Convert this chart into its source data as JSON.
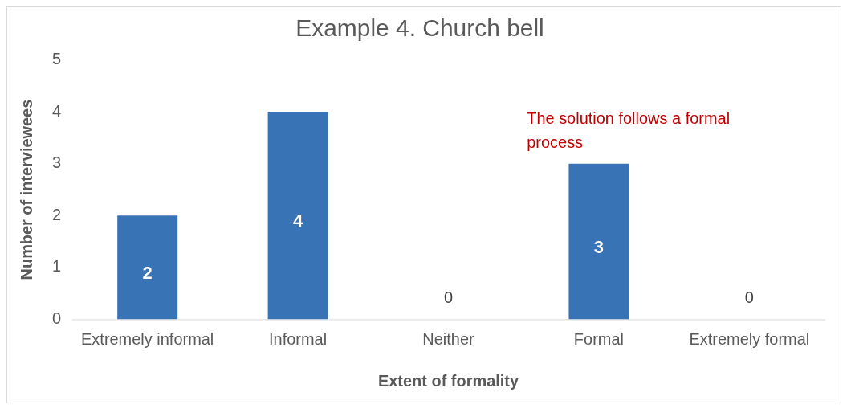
{
  "chart_data": {
    "type": "bar",
    "title": "Example 4. Church bell",
    "xlabel": "Extent of formality",
    "ylabel": "Number of interviewees",
    "categories": [
      "Extremely informal",
      "Informal",
      "Neither",
      "Formal",
      "Extremely formal"
    ],
    "values": [
      2,
      4,
      0,
      3,
      0
    ],
    "color": "#3873b5",
    "ylim": [
      0,
      5
    ],
    "yticks": [
      0,
      1,
      2,
      3,
      4,
      5
    ],
    "grid": false,
    "legend": false,
    "data_labels": true,
    "annotations": [
      {
        "text": "The solution follows a formal process",
        "x": "Formal",
        "y": 3
      }
    ]
  }
}
